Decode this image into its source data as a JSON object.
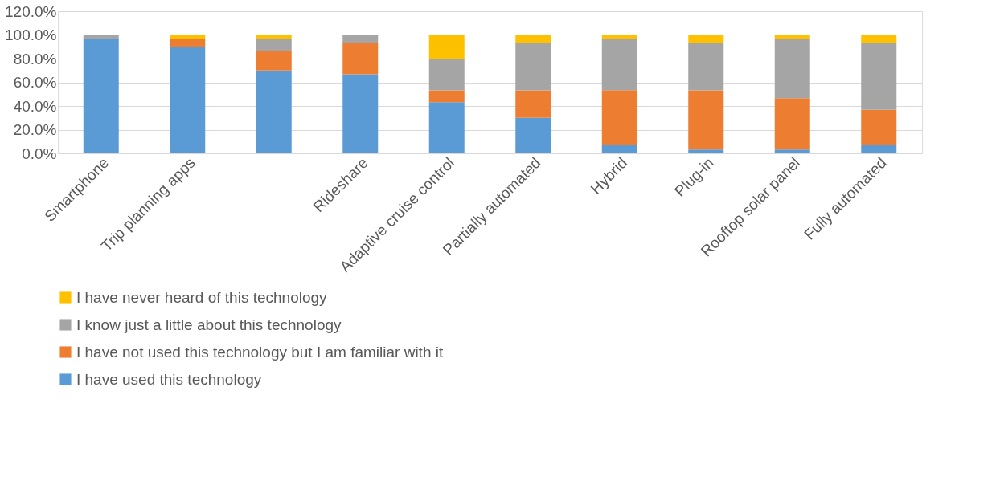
{
  "chart_data": {
    "type": "bar",
    "stacked": true,
    "categories": [
      "Smartphone",
      "Trip planning apps",
      null,
      "Rideshare",
      "Adaptive cruise control",
      "Partially automated",
      "Hybrid",
      "Plug-in",
      "Rooftop solar panel",
      "Fully automated"
    ],
    "series": [
      {
        "name": "I have used this technology",
        "color": "#5b9bd5",
        "values": [
          96.7,
          90,
          70,
          66.7,
          43.3,
          30,
          6.7,
          3.3,
          3.3,
          6.7
        ]
      },
      {
        "name": "I have not used this technology but I am familiar with it",
        "color": "#ed7d31",
        "values": [
          0,
          6.7,
          16.7,
          26.7,
          10,
          23.3,
          46.7,
          50,
          43.3,
          30
        ]
      },
      {
        "name": "I know just a little about this technology",
        "color": "#a5a5a5",
        "values": [
          3.3,
          0,
          10,
          6.7,
          26.7,
          40,
          43.3,
          40,
          50,
          56.7
        ]
      },
      {
        "name": "I have never heard of this technology",
        "color": "#ffc000",
        "values": [
          0,
          3.3,
          3.3,
          0,
          20,
          6.7,
          3.3,
          6.7,
          3.3,
          6.7
        ]
      }
    ],
    "ylim": [
      0,
      120
    ],
    "yticks": [
      {
        "value": 0,
        "label": "0.0%"
      },
      {
        "value": 20,
        "label": "20.0%"
      },
      {
        "value": 40,
        "label": "40.0%"
      },
      {
        "value": 60,
        "label": "60.0%"
      },
      {
        "value": 80,
        "label": "80.0%"
      },
      {
        "value": 100,
        "label": "100.0%"
      },
      {
        "value": 120,
        "label": "120.0%"
      }
    ],
    "grid": "y",
    "legend": "bottom"
  }
}
